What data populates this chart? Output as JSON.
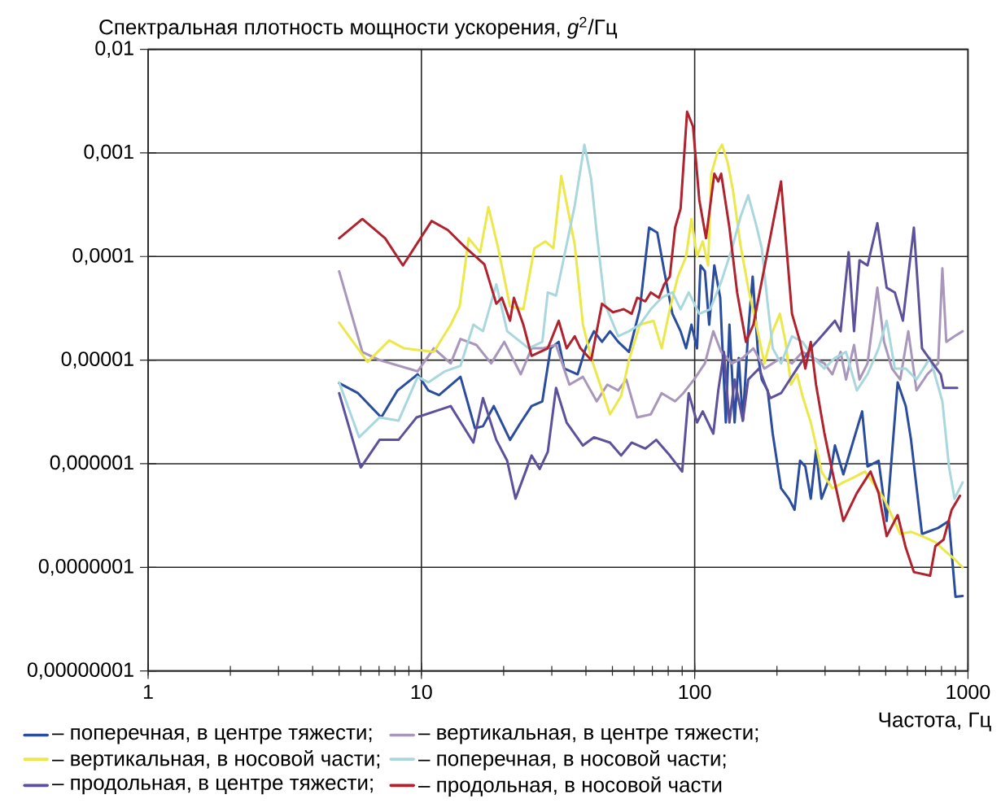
{
  "chart_data": {
    "type": "line",
    "log": "xy",
    "grid": true,
    "legend": "bottom",
    "ylabel": "Спектральная плотность мощности ускорения, *g*$^{2}$/Гц",
    "xlabel": "Частота, Гц",
    "xlim": [
      1,
      1000
    ],
    "xticks": [
      1,
      10,
      100,
      1000
    ],
    "ylim": [
      1e-08,
      0.01
    ],
    "yticks": [
      {
        "value": 0.01,
        "label": "0,01"
      },
      {
        "value": 0.001,
        "label": "0,001"
      },
      {
        "value": 0.0001,
        "label": "0,0001"
      },
      {
        "value": 1e-05,
        "label": "0,00001"
      },
      {
        "value": 1e-06,
        "label": "0,000001"
      },
      {
        "value": 1e-07,
        "label": "0,0000001"
      },
      {
        "value": 1e-08,
        "label": "0,00000001"
      }
    ],
    "series": [
      {
        "name": "– поперечная, в центре тяжести;",
        "color": "#2a4d9e",
        "x": [
          5,
          5.86,
          7.13,
          8.18,
          9.69,
          10.6,
          11.6,
          13.9,
          15.7,
          16.8,
          18.4,
          21.1,
          23.1,
          25.3,
          27.7,
          29.7,
          31.8,
          33.3,
          37.3,
          39.9,
          42.8,
          45.8,
          49,
          52.5,
          57.5,
          63,
          68.1,
          73,
          77.4,
          82.9,
          88.8,
          93,
          97.3,
          102,
          105,
          109,
          113,
          118,
          124,
          130,
          134,
          140,
          145,
          150,
          157,
          163,
          171,
          176,
          185,
          193,
          207,
          221,
          232,
          243,
          254,
          266,
          278,
          291,
          312,
          326,
          350,
          410,
          429,
          471,
          504,
          553,
          592,
          619,
          679,
          778,
          852,
          900,
          956
        ],
        "values": [
          6e-06,
          4.8e-06,
          2.8e-06,
          5.1e-06,
          7.3e-06,
          5.1e-06,
          4.6e-06,
          6.9e-06,
          2.2e-06,
          2.3e-06,
          3.6e-06,
          1.7e-06,
          2.5e-06,
          3.6e-06,
          4e-06,
          1.3e-05,
          1.5e-05,
          8.3e-06,
          7.3e-06,
          1.3e-05,
          1.9e-05,
          1.5e-05,
          1.9e-05,
          1.5e-05,
          1.2e-05,
          3.1e-05,
          0.00019,
          0.00017,
          7.2e-05,
          2.8e-05,
          1.9e-05,
          1.3e-05,
          2.2e-05,
          1.3e-05,
          8.2e-05,
          7.2e-05,
          2.2e-05,
          8.2e-05,
          4e-05,
          2.5e-06,
          2.2e-05,
          2.5e-06,
          1.05e-05,
          2.6e-06,
          1.9e-05,
          6.4e-05,
          1.05e-05,
          6.5e-06,
          5.1e-06,
          1.95e-06,
          5.8e-07,
          4.6e-07,
          3.6e-07,
          1.07e-06,
          9.4e-07,
          4.6e-07,
          1.36e-06,
          4.6e-07,
          7.4e-07,
          1.5e-06,
          7.9e-07,
          3.2e-06,
          9.4e-07,
          1.07e-06,
          2.8e-07,
          6.1e-06,
          3.6e-06,
          1.7e-06,
          2.1e-07,
          2.4e-07,
          2.8e-07,
          5.2e-08,
          5.3e-08
        ]
      },
      {
        "name": "– вертикальная, в центре тяжести;",
        "color": "#a996bb",
        "x": [
          5,
          6.08,
          7.03,
          9.69,
          11.1,
          12.8,
          13.9,
          15.9,
          18,
          20.1,
          23.1,
          25.3,
          27.7,
          31.1,
          34.8,
          39,
          43.8,
          47.9,
          52.5,
          56.2,
          61.6,
          69.1,
          75.7,
          84.8,
          90.9,
          99.5,
          109,
          117,
          125,
          137,
          150,
          164,
          180,
          207,
          227,
          248,
          272,
          298,
          319,
          342,
          358,
          383,
          401,
          429,
          466,
          493,
          527,
          565,
          605,
          648,
          710,
          778,
          806,
          833,
          893,
          956
        ],
        "values": [
          7.2e-05,
          1.2e-05,
          1e-05,
          7.8e-06,
          1.3e-05,
          9.3e-06,
          1.6e-05,
          1.4e-05,
          9.3e-06,
          1.5e-05,
          7.3e-06,
          1.3e-05,
          1.3e-05,
          1.4e-05,
          5.8e-06,
          6.9e-06,
          4e-06,
          5.8e-06,
          5.1e-06,
          6.5e-06,
          2.8e-06,
          3e-06,
          4.8e-06,
          4e-06,
          4.8e-06,
          6.5e-06,
          9.3e-06,
          1.9e-05,
          1.2e-05,
          9.3e-06,
          1.05e-05,
          1.3e-05,
          8.3e-06,
          1.05e-05,
          9.3e-06,
          1.2e-05,
          1.05e-05,
          9.3e-06,
          7.3e-06,
          1.2e-05,
          6.5e-06,
          1.4e-05,
          6.5e-06,
          9.3e-06,
          5e-05,
          1.5e-05,
          8.3e-06,
          6.5e-06,
          1.9e-05,
          5.1e-06,
          7.3e-06,
          9.3e-06,
          7.7e-05,
          1.5e-05,
          1.7e-05,
          1.9e-05
        ]
      },
      {
        "name": "– вертикальная, в носовой части;",
        "color": "#ece84a",
        "x": [
          5,
          6.36,
          7.63,
          8.64,
          11.1,
          12.8,
          13.8,
          14.9,
          16.4,
          17.6,
          19.1,
          21.1,
          23.6,
          25.9,
          28.4,
          30.4,
          32.5,
          34.8,
          36.4,
          39,
          41.8,
          43.8,
          49,
          53.8,
          57.5,
          63,
          70.7,
          75.7,
          81.1,
          86.8,
          93,
          97.3,
          102,
          107,
          112,
          115,
          121,
          126,
          132,
          138,
          147,
          157,
          168,
          180,
          193,
          205,
          215,
          225,
          237,
          248,
          266,
          278,
          291,
          319,
          350,
          383,
          420,
          493,
          565,
          619,
          679,
          760,
          833,
          893,
          956
        ],
        "values": [
          2.3e-05,
          9.6e-06,
          1.55e-05,
          1.3e-05,
          1.2e-05,
          2.2e-05,
          3.3e-05,
          0.00015,
          0.00011,
          0.0003,
          0.00012,
          3.3e-05,
          3.1e-05,
          0.00012,
          0.00014,
          0.00012,
          0.0006,
          0.00024,
          0.00013,
          2.2e-05,
          1.05e-05,
          7.3e-06,
          3e-06,
          4.5e-06,
          1e-05,
          2.2e-05,
          2.4e-05,
          1.3e-05,
          3.1e-05,
          6.4e-05,
          0.0001,
          0.00023,
          0.0001,
          0.00014,
          8.2e-05,
          0.00063,
          0.001,
          0.0012,
          0.00081,
          0.00044,
          0.00013,
          5e-05,
          2.2e-05,
          9.3e-06,
          1.9e-05,
          2.8e-05,
          1.5e-05,
          5.8e-06,
          7.3e-06,
          4.5e-06,
          2.5e-06,
          1.5e-06,
          8.4e-07,
          5.8e-07,
          6.6e-07,
          7.4e-07,
          8.4e-07,
          4.6e-07,
          2.1e-07,
          2.2e-07,
          2e-07,
          1.75e-07,
          1.4e-07,
          1.2e-07,
          1e-07
        ]
      },
      {
        "name": "– поперечная, в носовой части;",
        "color": "#a9d7de",
        "x": [
          5,
          5.92,
          7.03,
          8.25,
          9.69,
          10.6,
          12.2,
          13.9,
          15.5,
          16.8,
          18.8,
          20.6,
          24.7,
          27.7,
          29,
          31.1,
          33.3,
          36.4,
          39.5,
          41.8,
          43.8,
          46.9,
          52.5,
          57.5,
          63,
          69.1,
          75.7,
          82.9,
          88.8,
          95.1,
          104,
          114,
          125,
          137,
          147,
          157,
          168,
          176,
          185,
          193,
          207,
          227,
          248,
          272,
          298,
          326,
          358,
          392,
          429,
          471,
          504,
          540,
          592,
          648,
          727,
          806,
          852,
          893,
          956
        ],
        "values": [
          6.1e-06,
          1.8e-06,
          2.8e-06,
          2.6e-06,
          6.9e-06,
          6.1e-06,
          7.8e-06,
          8.8e-06,
          2.2e-05,
          1.9e-05,
          5.4e-05,
          1.9e-05,
          1.3e-05,
          1.5e-05,
          4.5e-05,
          4.2e-05,
          0.0001,
          0.00031,
          0.0012,
          0.00056,
          0.00017,
          3.5e-05,
          1.7e-05,
          1.9e-05,
          2.2e-05,
          3.1e-05,
          4e-05,
          4.5e-05,
          3.1e-05,
          4.5e-05,
          2.8e-05,
          3.1e-05,
          5.7e-05,
          0.00012,
          0.00024,
          0.00039,
          0.0002,
          0.00012,
          3.5e-05,
          1.3e-05,
          9.3e-06,
          1.7e-05,
          1.5e-05,
          1.05e-05,
          8.3e-06,
          1.05e-05,
          1.2e-05,
          5.1e-06,
          7.3e-06,
          1.3e-05,
          2.4e-05,
          8.3e-06,
          8.3e-06,
          6.5e-06,
          1.05e-05,
          4e-06,
          9.4e-07,
          4.6e-07,
          6.6e-07
        ]
      },
      {
        "name": "– продольная, в центре тяжести;",
        "color": "#5d519b",
        "x": [
          5,
          6.0,
          7.03,
          8.25,
          9.6,
          12.8,
          15.5,
          16.8,
          18.8,
          20.6,
          22.1,
          25.3,
          27.1,
          29,
          31.1,
          34,
          39,
          42.8,
          49,
          53.8,
          58.8,
          66,
          72.3,
          81.1,
          90,
          95.1,
          102,
          107,
          117,
          122,
          128,
          134,
          140,
          150,
          157,
          172,
          189,
          207,
          237,
          266,
          291,
          326,
          342,
          366,
          383,
          401,
          429,
          466,
          504,
          540,
          578,
          634,
          679,
          743,
          795,
          814,
          913
        ],
        "values": [
          4.8e-06,
          9.2e-07,
          1.7e-06,
          1.7e-06,
          2.8e-06,
          3.6e-06,
          1.6e-06,
          4.3e-06,
          1.7e-06,
          1.07e-06,
          4.6e-07,
          1.2e-06,
          8.9e-07,
          1.3e-06,
          5.4e-06,
          2.5e-06,
          1.5e-06,
          1.8e-06,
          1.6e-06,
          1.2e-06,
          1.6e-06,
          1.4e-06,
          1.7e-06,
          1.2e-06,
          8.4e-07,
          4.8e-06,
          2.5e-06,
          3.2e-06,
          1.95e-06,
          5.1e-06,
          1.2e-05,
          2.5e-06,
          6.5e-06,
          2.6e-06,
          6.5e-06,
          8.3e-06,
          4.3e-06,
          4.8e-06,
          8.3e-06,
          1.3e-05,
          1.7e-05,
          2.4e-05,
          1.9e-05,
          0.00011,
          1.9e-05,
          9.2e-05,
          8.2e-05,
          0.00021,
          5e-05,
          4.5e-05,
          2.4e-05,
          0.00019,
          1.3e-05,
          9.3e-06,
          7.3e-06,
          5.4e-06,
          5.4e-06
        ]
      },
      {
        "name": "– продольная, в носовой части",
        "color": "#b0232e",
        "x": [
          5,
          6.08,
          7.37,
          8.56,
          10.9,
          12.5,
          14.6,
          17,
          18.8,
          19.7,
          21.1,
          21.8,
          23.6,
          25.3,
          29,
          31.8,
          34,
          36.4,
          38.2,
          41.8,
          45.8,
          50.2,
          55,
          58.8,
          61.6,
          66,
          69.1,
          74,
          77.4,
          81.1,
          84.8,
          88.8,
          93.8,
          98.6,
          104,
          110,
          118,
          122,
          125,
          134,
          143,
          154,
          164,
          207,
          227,
          243,
          254,
          266,
          278,
          298,
          319,
          350,
          392,
          440,
          471,
          504,
          553,
          592,
          634,
          727,
          760,
          814,
          872,
          934
        ],
        "values": [
          0.00015,
          0.00023,
          0.00015,
          8.2e-05,
          0.00022,
          0.00018,
          0.00012,
          8.4e-05,
          3.5e-05,
          4e-05,
          2.4e-05,
          4e-05,
          2.2e-05,
          1.1e-05,
          1.3e-05,
          2.4e-05,
          1.3e-05,
          1.7e-05,
          1.3e-05,
          1e-05,
          3.5e-05,
          2.9e-05,
          3.1e-05,
          2.8e-05,
          4e-05,
          3.7e-05,
          4.5e-05,
          4e-05,
          5.4e-05,
          6.4e-05,
          0.00019,
          0.00029,
          0.0025,
          0.0018,
          0.00035,
          0.00015,
          0.00063,
          0.00053,
          0.00063,
          0.00019,
          4.5e-05,
          1.5e-05,
          2.2e-05,
          0.00053,
          2.8e-05,
          1.5e-05,
          8.3e-06,
          1.5e-05,
          5.8e-06,
          2e-06,
          8.4e-07,
          2.8e-07,
          5.2e-07,
          8.4e-07,
          5.2e-07,
          2e-07,
          3.2e-07,
          1.55e-07,
          9e-08,
          8.3e-08,
          1.6e-07,
          1.85e-07,
          3.6e-07,
          4.9e-07
        ]
      }
    ]
  }
}
